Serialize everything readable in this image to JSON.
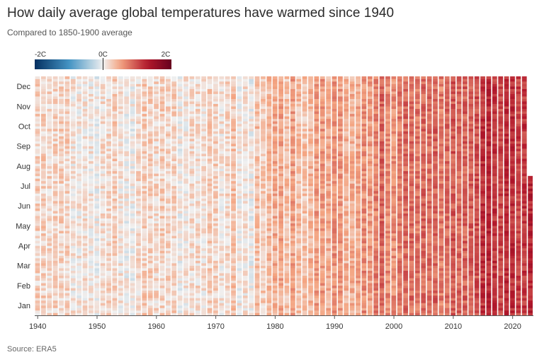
{
  "header": {
    "title": "How daily average global temperatures have warmed since 1940",
    "subtitle": "Compared to 1850-1900 average"
  },
  "footer": {
    "source": "Source: ERA5"
  },
  "colors": {
    "cold": "#053061",
    "cool": "#4393c3",
    "neutral": "#f0f0f0",
    "warm": "#f4a582",
    "hot": "#b2182b",
    "hottest": "#67001f"
  },
  "chart_data": {
    "type": "heatmap",
    "x_axis": {
      "start_year": 1940,
      "end_year": 2023,
      "tick_labels": [
        "1940",
        "1950",
        "1960",
        "1970",
        "1980",
        "1990",
        "2000",
        "2010",
        "2020"
      ],
      "tick_values": [
        1940,
        1950,
        1960,
        1970,
        1980,
        1990,
        2000,
        2010,
        2020
      ]
    },
    "y_axis": {
      "tick_labels": [
        "Jan",
        "Feb",
        "Mar",
        "Apr",
        "May",
        "Jun",
        "Jul",
        "Aug",
        "Sep",
        "Oct",
        "Nov",
        "Dec"
      ],
      "months": 12
    },
    "legend": {
      "labels": [
        "-2C",
        "0C",
        "2C"
      ],
      "min": -2,
      "max": 2,
      "placement": "top-left"
    },
    "partial_year": {
      "year": 2023,
      "last_month": 7
    },
    "annual_mean_anomaly_c": [
      0.2,
      0.22,
      0.18,
      0.2,
      0.22,
      0.2,
      0.08,
      0.08,
      0.1,
      0.06,
      0.0,
      0.12,
      0.16,
      0.22,
      0.08,
      0.02,
      0.0,
      0.16,
      0.24,
      0.2,
      0.16,
      0.22,
      0.18,
      0.2,
      0.02,
      0.06,
      0.14,
      0.14,
      0.1,
      0.22,
      0.2,
      0.08,
      0.16,
      0.3,
      0.04,
      0.1,
      0.0,
      0.32,
      0.24,
      0.34,
      0.44,
      0.48,
      0.32,
      0.52,
      0.34,
      0.3,
      0.38,
      0.54,
      0.56,
      0.44,
      0.6,
      0.56,
      0.4,
      0.44,
      0.48,
      0.64,
      0.54,
      0.7,
      0.86,
      0.64,
      0.62,
      0.74,
      0.84,
      0.82,
      0.76,
      0.84,
      0.8,
      0.86,
      0.72,
      0.82,
      0.92,
      0.84,
      0.88,
      0.9,
      0.96,
      1.16,
      1.22,
      1.12,
      1.02,
      1.16,
      1.2,
      1.06,
      1.12,
      1.26
    ]
  }
}
